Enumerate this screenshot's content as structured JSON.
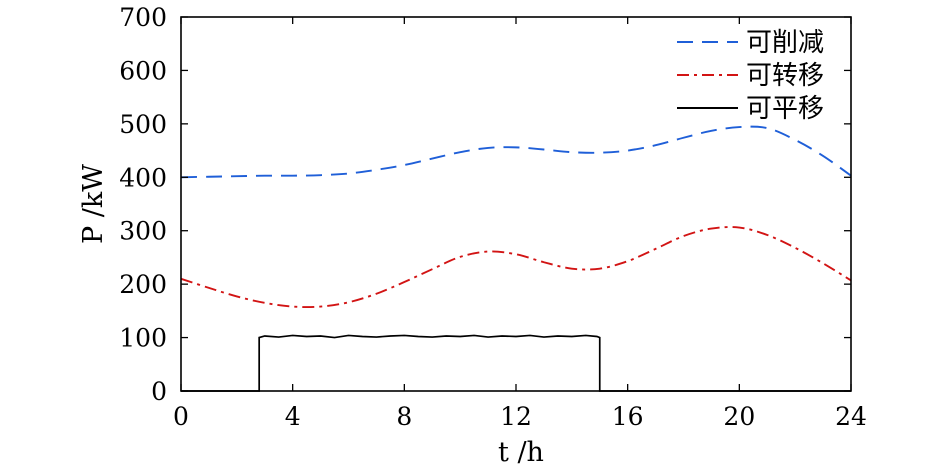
{
  "chart_data": {
    "type": "line",
    "xlabel": "t /h",
    "ylabel": "P /kW",
    "xlim": [
      0,
      24
    ],
    "ylim": [
      0,
      700
    ],
    "xticks": [
      0,
      4,
      8,
      12,
      16,
      20,
      24
    ],
    "yticks": [
      0,
      100,
      200,
      300,
      400,
      500,
      600,
      700
    ],
    "grid": false,
    "legend_position": "top-right",
    "series": [
      {
        "name": "可削减",
        "color": "#1f5fd8",
        "dash": "dashed",
        "x": [
          0,
          1,
          2,
          3,
          4,
          5,
          6,
          7,
          8,
          9,
          10,
          11,
          12,
          13,
          14,
          15,
          16,
          17,
          18,
          19,
          20,
          21,
          22,
          23,
          24
        ],
        "y": [
          400,
          401,
          402,
          403,
          403,
          404,
          407,
          414,
          423,
          435,
          447,
          455,
          456,
          452,
          447,
          446,
          450,
          460,
          474,
          487,
          494,
          492,
          470,
          440,
          403
        ]
      },
      {
        "name": "可转移",
        "color": "#d21414",
        "dash": "dashdot",
        "x": [
          0,
          1,
          2,
          3,
          4,
          5,
          6,
          7,
          8,
          9,
          10,
          11,
          12,
          13,
          14,
          15,
          16,
          17,
          18,
          19,
          20,
          21,
          22,
          23,
          24
        ],
        "y": [
          210,
          193,
          177,
          165,
          158,
          158,
          166,
          182,
          204,
          228,
          251,
          261,
          256,
          241,
          229,
          229,
          243,
          266,
          290,
          304,
          306,
          292,
          268,
          239,
          207
        ]
      },
      {
        "name": "可平移",
        "color": "#000000",
        "dash": "solid",
        "x": [
          0,
          2.8,
          2.8,
          3,
          3.5,
          4,
          4.5,
          5,
          5.5,
          6,
          6.5,
          7,
          7.5,
          8,
          8.5,
          9,
          9.5,
          10,
          10.5,
          11,
          11.5,
          12,
          12.5,
          13,
          13.5,
          14,
          14.5,
          14.9,
          15,
          15,
          24
        ],
        "y": [
          0,
          0,
          100,
          103,
          101,
          104,
          102,
          103,
          100,
          104,
          102,
          101,
          103,
          104,
          102,
          101,
          103,
          102,
          104,
          101,
          103,
          102,
          104,
          101,
          103,
          102,
          104,
          102,
          100,
          0,
          0
        ]
      }
    ]
  }
}
